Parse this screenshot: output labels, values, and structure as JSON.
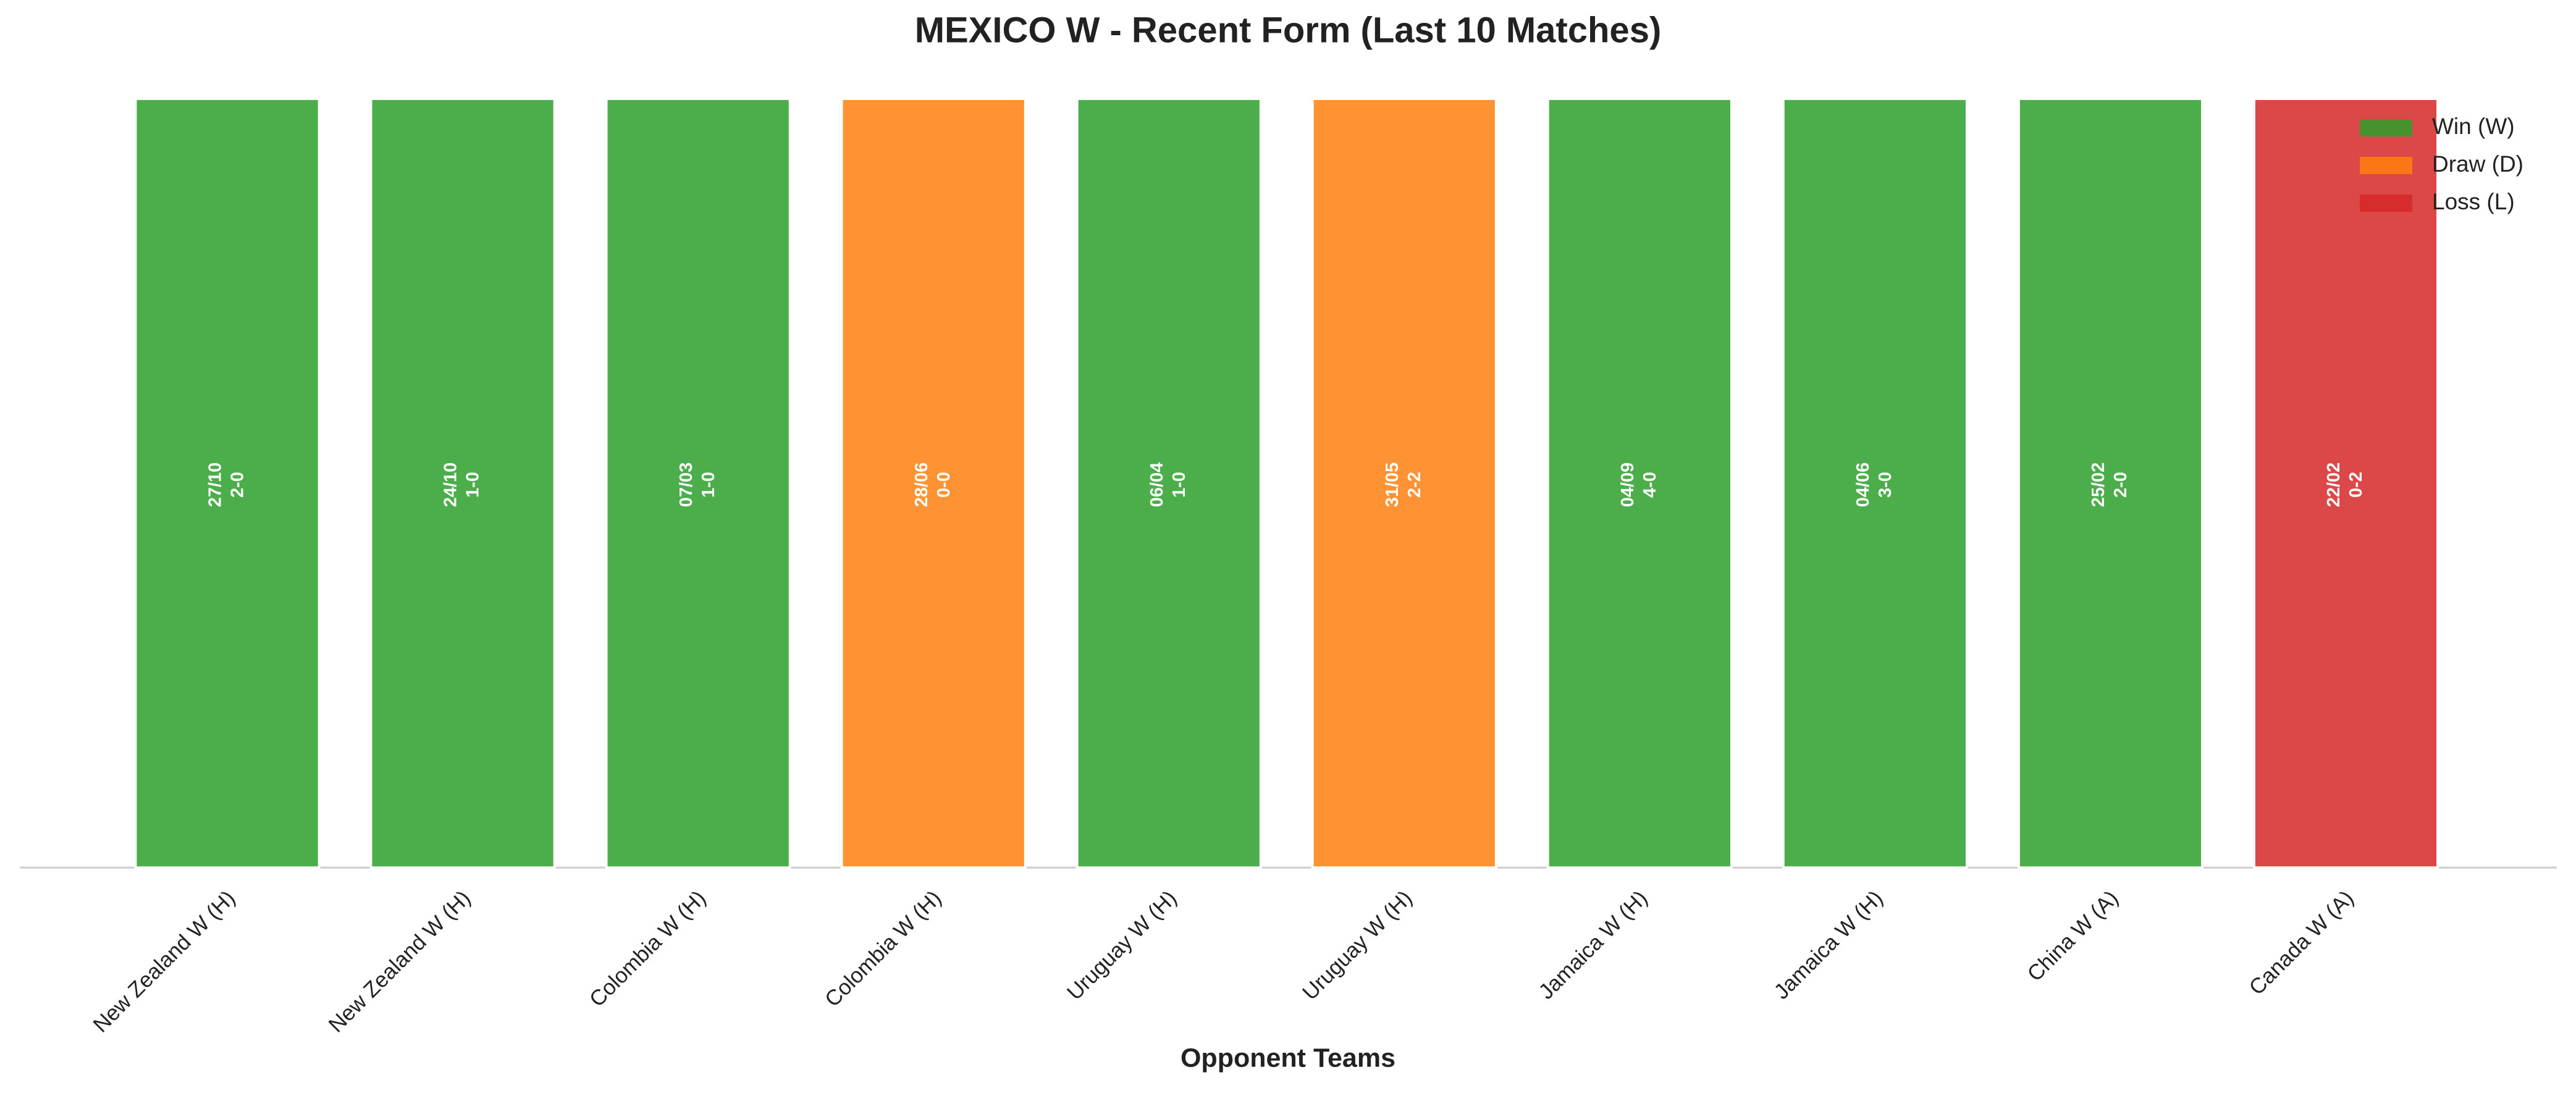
{
  "chart_data": {
    "type": "bar",
    "title": "MEXICO W - Recent Form (Last 10 Matches)",
    "x_label": "Opponent Teams",
    "categories": [
      "New Zealand W (H)",
      "New Zealand W (H)",
      "Colombia W (H)",
      "Colombia W (H)",
      "Uruguay W (H)",
      "Uruguay W (H)",
      "Jamaica W (H)",
      "Jamaica W (H)",
      "China W (A)",
      "Canada W (A)"
    ],
    "dates": [
      "27/10",
      "24/10",
      "07/03",
      "28/06",
      "06/04",
      "31/05",
      "04/09",
      "04/06",
      "25/02",
      "22/02"
    ],
    "scores": [
      "2-0",
      "1-0",
      "1-0",
      "0-0",
      "1-0",
      "2-2",
      "4-0",
      "3-0",
      "2-0",
      "0-2"
    ],
    "series": [
      {
        "name": "Win (W)",
        "color": "#2ca02c",
        "values": [
          1,
          1,
          1,
          null,
          1,
          null,
          1,
          1,
          1,
          null
        ]
      },
      {
        "name": "Draw (D)",
        "color": "#ff7f0e",
        "values": [
          null,
          null,
          null,
          1,
          null,
          1,
          null,
          null,
          null,
          null
        ]
      },
      {
        "name": "Loss (L)",
        "color": "#d62728",
        "values": [
          null,
          null,
          null,
          null,
          null,
          null,
          null,
          null,
          null,
          1
        ]
      }
    ],
    "ylim": [
      0,
      1
    ],
    "legend": "upper right"
  }
}
